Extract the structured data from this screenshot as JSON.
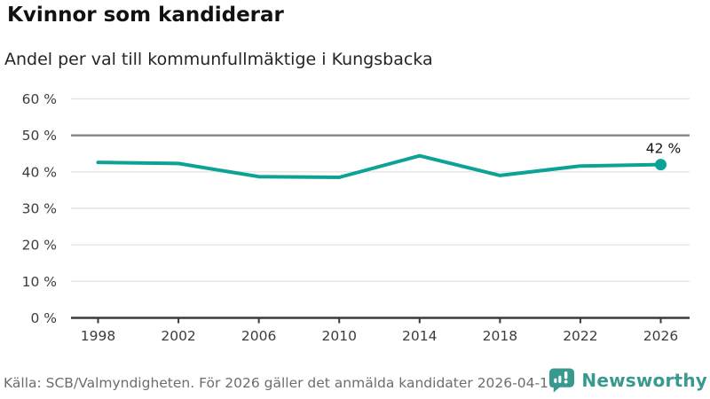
{
  "header": {
    "title": "Kvinnor som kandiderar",
    "subtitle": "Andel per val till kommunfullmäktige i Kungsbacka"
  },
  "chart_data": {
    "type": "line",
    "title": "Kvinnor som kandiderar",
    "subtitle": "Andel per val till kommunfullmäktige i Kungsbacka",
    "categories": [
      "1998",
      "2002",
      "2006",
      "2010",
      "2014",
      "2018",
      "2022",
      "2026"
    ],
    "values": [
      42.6,
      42.3,
      38.7,
      38.5,
      44.4,
      39.0,
      41.6,
      42.0
    ],
    "xlabel": "",
    "ylabel": "",
    "ylim": [
      0,
      60
    ],
    "y_ticks": [
      0,
      10,
      20,
      30,
      40,
      50,
      60
    ],
    "y_tick_suffix": " %",
    "emphasized_gridline": 50,
    "grid": true,
    "legend_position": "none",
    "last_value_label": "42 %",
    "line_color": "#0da296",
    "marker_on_last_point": true
  },
  "footer": {
    "source": "Källa: SCB/Valmyndigheten. För 2026 gäller det anmälda kandidater 2026-04-10.",
    "brand": "Newsworthy"
  },
  "colors": {
    "accent_teal": "#0da296",
    "brand_teal": "#38998f",
    "gridline": "#e4e4e4",
    "emphasized_gridline": "#858585",
    "axis": "#3a3a3a",
    "tick_label": "#3d3d3d",
    "annotation": "#111111",
    "source_text": "#6d6d6d"
  },
  "icons": {
    "brand_logo": "newsworthy-speech-bubble-barchart-icon"
  }
}
